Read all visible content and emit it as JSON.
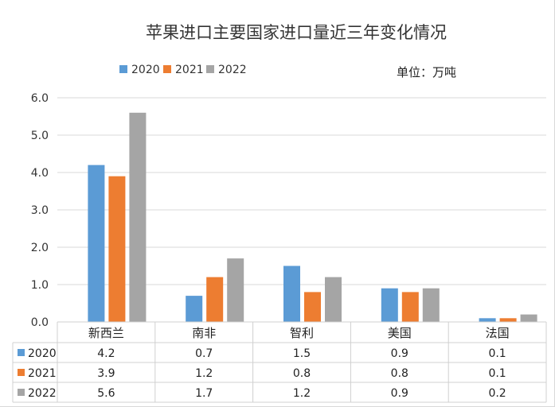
{
  "chart_data": {
    "type": "bar",
    "title": "苹果进口主要国家进口量近三年变化情况",
    "unit_label": "单位：万吨",
    "categories": [
      "新西兰",
      "南非",
      "智利",
      "美国",
      "法国"
    ],
    "series": [
      {
        "name": "2020",
        "color": "#5b9bd5",
        "values": [
          4.2,
          0.7,
          1.5,
          0.9,
          0.1
        ],
        "table_values": [
          "4.2",
          "0.7",
          "1.5",
          "0.9",
          "0.1"
        ]
      },
      {
        "name": "2021",
        "color": "#ed7d31",
        "values": [
          3.9,
          1.2,
          0.8,
          0.8,
          0.1
        ],
        "table_values": [
          "3.9",
          "1.2",
          "0.8",
          "0.8",
          "0.1"
        ]
      },
      {
        "name": "2022",
        "color": "#a5a5a5",
        "values": [
          5.6,
          1.7,
          1.2,
          0.9,
          0.2
        ],
        "table_values": [
          "5.6",
          "1.7",
          "1.2",
          "0.9",
          "0.2"
        ]
      }
    ],
    "ylim": [
      0,
      6
    ],
    "yticks": [
      "0.0",
      "1.0",
      "2.0",
      "3.0",
      "4.0",
      "5.0",
      "6.0"
    ],
    "grid": true,
    "legend_position": "top",
    "data_table": true
  }
}
